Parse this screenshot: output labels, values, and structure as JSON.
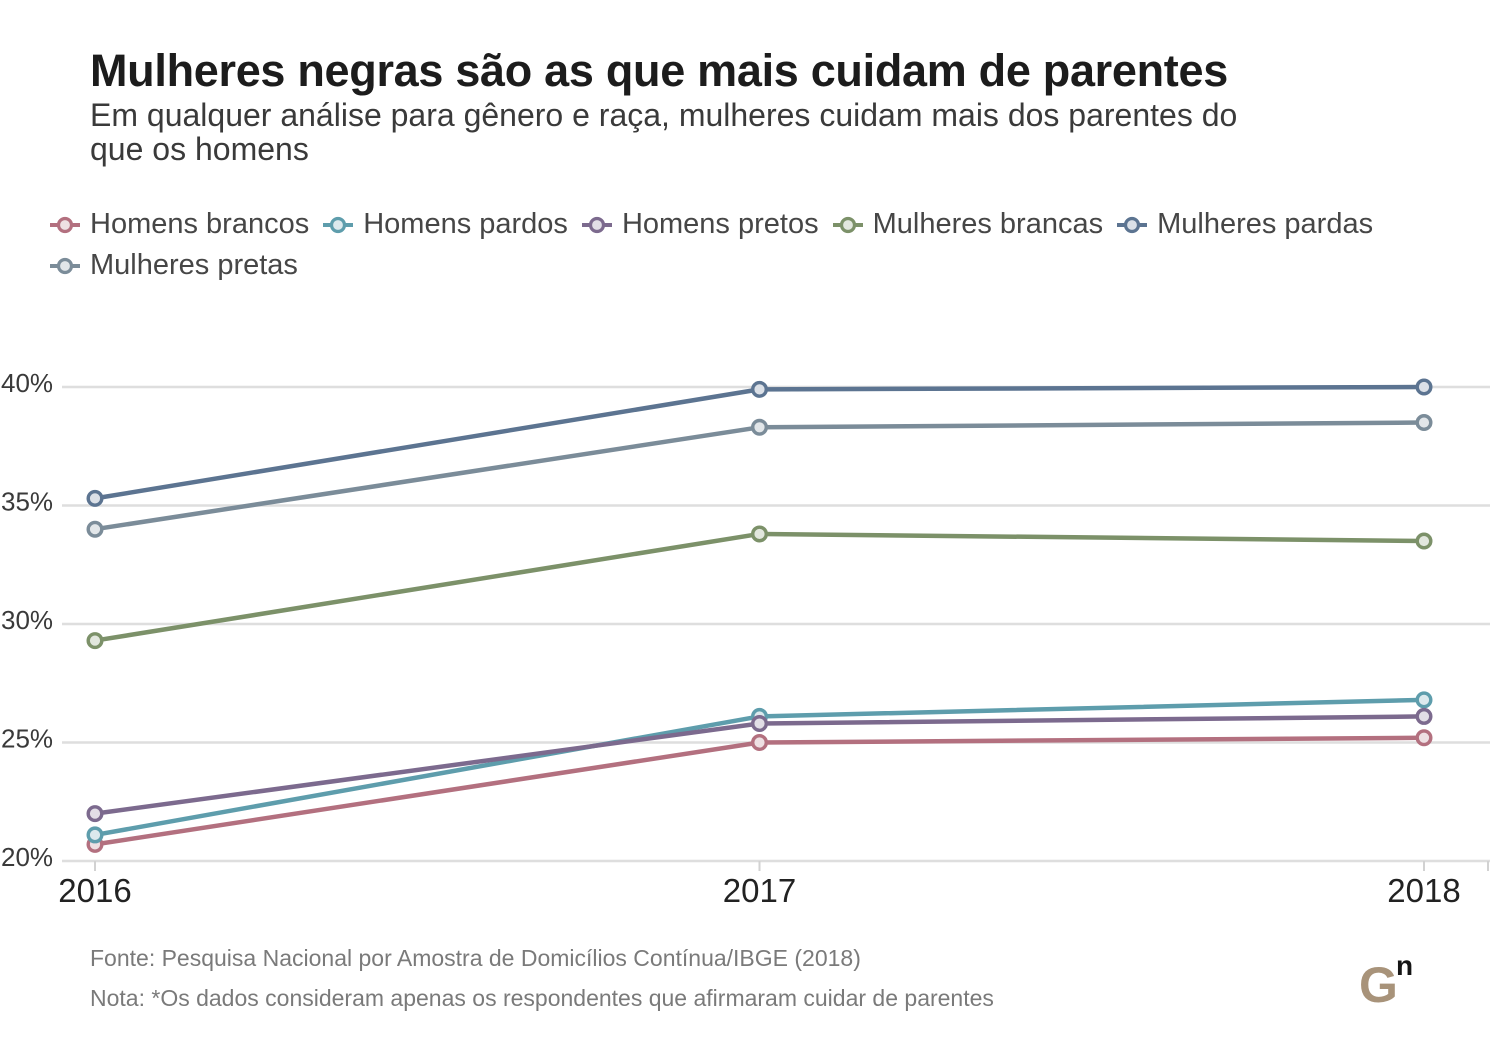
{
  "chart_data": {
    "type": "line",
    "title": "Mulheres negras são as que mais cuidam de parentes",
    "subtitle": "Em qualquer análise para gênero e raça, mulheres cuidam mais dos parentes do que os homens",
    "x": [
      2016,
      2017,
      2018
    ],
    "x_tick_labels": [
      "2016",
      "2017",
      "2018"
    ],
    "xlim": [
      2016,
      2018
    ],
    "y_ticks": [
      20,
      25,
      30,
      35,
      40
    ],
    "y_tick_labels": [
      "20%",
      "25%",
      "30%",
      "35%",
      "40%"
    ],
    "ylim": [
      20,
      40
    ],
    "grid": true,
    "legend_position": "top-left",
    "series": [
      {
        "name": "Homens brancos",
        "color": "#b3707f",
        "values": [
          20.7,
          25.0,
          25.2
        ]
      },
      {
        "name": "Homens pardos",
        "color": "#5e9dac",
        "values": [
          21.1,
          26.1,
          26.8
        ]
      },
      {
        "name": "Homens pretos",
        "color": "#7c6a8e",
        "values": [
          22.0,
          25.8,
          26.1
        ]
      },
      {
        "name": "Mulheres brancas",
        "color": "#7c9169",
        "values": [
          29.3,
          33.8,
          33.5
        ]
      },
      {
        "name": "Mulheres pardas",
        "color": "#5c7491",
        "values": [
          35.3,
          39.9,
          40.0
        ]
      },
      {
        "name": "Mulheres pretas",
        "color": "#7b8c99",
        "values": [
          34.0,
          38.3,
          38.5
        ]
      }
    ]
  },
  "footer": {
    "source": "Fonte: Pesquisa Nacional por Amostra de Domicílios Contínua/IBGE (2018)",
    "note": "Nota: *Os dados consideram apenas os respondentes que afirmaram cuidar de parentes"
  },
  "logo": {
    "main": "G",
    "superscript": "n",
    "main_color": "#a8937a"
  }
}
